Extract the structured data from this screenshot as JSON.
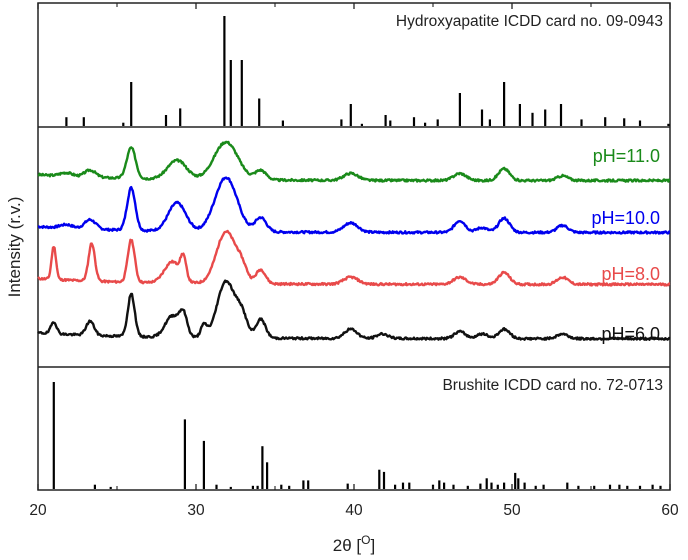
{
  "chart_data": {
    "type": "line",
    "title": "",
    "xlabel": "2θ [°]",
    "xlabel_main": "2θ [",
    "xlabel_deg": "O",
    "xlabel_close": "]",
    "ylabel": "Intensity (r.v.)",
    "xlim": [
      20,
      60
    ],
    "xticks": [
      20,
      30,
      40,
      50,
      60
    ],
    "xtick_labels": [
      "20",
      "30",
      "40",
      "50",
      "60"
    ],
    "panels": [
      {
        "id": "hydroxyapatite",
        "label": "Hydroxyapatite ICDD card no. 09-0943",
        "type": "stick",
        "ylim": [
          0,
          100
        ],
        "color": "#000000",
        "peaks": [
          [
            21.8,
            8
          ],
          [
            22.9,
            8
          ],
          [
            25.4,
            3
          ],
          [
            25.9,
            40
          ],
          [
            28.1,
            10
          ],
          [
            29.0,
            16
          ],
          [
            31.8,
            100
          ],
          [
            32.2,
            60
          ],
          [
            32.9,
            60
          ],
          [
            34.0,
            25
          ],
          [
            35.5,
            5
          ],
          [
            39.2,
            6
          ],
          [
            39.8,
            20
          ],
          [
            40.5,
            2
          ],
          [
            42.0,
            10
          ],
          [
            42.3,
            5
          ],
          [
            43.8,
            8
          ],
          [
            44.5,
            3
          ],
          [
            45.3,
            6
          ],
          [
            46.7,
            30
          ],
          [
            48.1,
            15
          ],
          [
            48.6,
            6
          ],
          [
            49.5,
            40
          ],
          [
            50.5,
            20
          ],
          [
            51.3,
            12
          ],
          [
            52.1,
            15
          ],
          [
            53.1,
            20
          ],
          [
            54.4,
            6
          ],
          [
            55.9,
            8
          ],
          [
            57.1,
            7
          ],
          [
            58.1,
            5
          ],
          [
            59.9,
            2
          ]
        ]
      },
      {
        "id": "patterns",
        "type": "line",
        "ylim": [
          0,
          100
        ],
        "series": [
          {
            "name": "pH=11.0",
            "color": "#1a8a1a",
            "baseline": 79,
            "noise_seed": 3,
            "peaks": [
              [
                21.8,
                0.4,
                1.5
              ],
              [
                23.3,
                0.35,
                3
              ],
              [
                25.9,
                0.28,
                13
              ],
              [
                28.8,
                0.6,
                8
              ],
              [
                31.9,
                0.75,
                16
              ],
              [
                34.1,
                0.35,
                4
              ],
              [
                39.8,
                0.45,
                3
              ],
              [
                46.7,
                0.4,
                3
              ],
              [
                49.5,
                0.35,
                5
              ],
              [
                53.2,
                0.35,
                2
              ]
            ]
          },
          {
            "name": "pH=10.0",
            "color": "#0000ee",
            "baseline": 57,
            "noise_seed": 7,
            "peaks": [
              [
                21.8,
                0.4,
                1.5
              ],
              [
                23.3,
                0.35,
                4
              ],
              [
                25.9,
                0.26,
                18
              ],
              [
                28.8,
                0.55,
                12
              ],
              [
                31.9,
                0.7,
                23
              ],
              [
                34.1,
                0.35,
                6
              ],
              [
                39.8,
                0.45,
                4
              ],
              [
                46.7,
                0.35,
                5
              ],
              [
                48.1,
                0.35,
                2
              ],
              [
                49.5,
                0.35,
                6
              ],
              [
                53.2,
                0.35,
                3
              ]
            ]
          },
          {
            "name": "pH=8.0",
            "color": "#e84a4a",
            "baseline": 35,
            "noise_seed": 11,
            "peaks": [
              [
                21.0,
                0.14,
                14
              ],
              [
                23.4,
                0.2,
                16
              ],
              [
                25.9,
                0.22,
                18
              ],
              [
                28.5,
                0.5,
                9
              ],
              [
                29.2,
                0.18,
                9
              ],
              [
                31.9,
                0.6,
                22
              ],
              [
                32.9,
                0.35,
                6
              ],
              [
                34.1,
                0.3,
                6
              ],
              [
                39.8,
                0.45,
                3
              ],
              [
                46.7,
                0.4,
                3
              ],
              [
                49.5,
                0.35,
                5
              ],
              [
                53.2,
                0.35,
                3
              ]
            ]
          },
          {
            "name": "pH=6.0",
            "color": "#111111",
            "baseline": 12,
            "noise_seed": 19,
            "peaks": [
              [
                21.0,
                0.18,
                5
              ],
              [
                23.3,
                0.25,
                6
              ],
              [
                25.9,
                0.22,
                18
              ],
              [
                28.5,
                0.45,
                9
              ],
              [
                29.2,
                0.25,
                9
              ],
              [
                30.5,
                0.2,
                5
              ],
              [
                31.9,
                0.55,
                24
              ],
              [
                32.9,
                0.35,
                9
              ],
              [
                34.1,
                0.3,
                8
              ],
              [
                39.8,
                0.4,
                4
              ],
              [
                41.8,
                0.35,
                2
              ],
              [
                46.7,
                0.35,
                3
              ],
              [
                48.1,
                0.35,
                2
              ],
              [
                49.5,
                0.35,
                4
              ],
              [
                53.2,
                0.35,
                2
              ]
            ]
          }
        ]
      },
      {
        "id": "brushite",
        "label": "Brushite ICDD card no. 72-0713",
        "type": "stick",
        "ylim": [
          0,
          100
        ],
        "color": "#000000",
        "peaks": [
          [
            21.0,
            100
          ],
          [
            23.6,
            4
          ],
          [
            24.6,
            2
          ],
          [
            29.3,
            65
          ],
          [
            30.5,
            45
          ],
          [
            31.3,
            4
          ],
          [
            32.2,
            2
          ],
          [
            33.6,
            3
          ],
          [
            33.9,
            3
          ],
          [
            34.2,
            40
          ],
          [
            34.5,
            25
          ],
          [
            35.4,
            4
          ],
          [
            35.9,
            3
          ],
          [
            36.8,
            8
          ],
          [
            37.1,
            8
          ],
          [
            39.6,
            5
          ],
          [
            41.6,
            18
          ],
          [
            41.9,
            16
          ],
          [
            42.6,
            4
          ],
          [
            43.1,
            6
          ],
          [
            43.5,
            6
          ],
          [
            45.0,
            4
          ],
          [
            45.4,
            8
          ],
          [
            45.7,
            6
          ],
          [
            46.3,
            4
          ],
          [
            47.2,
            3
          ],
          [
            48.0,
            5
          ],
          [
            48.4,
            10
          ],
          [
            48.7,
            6
          ],
          [
            49.1,
            4
          ],
          [
            49.5,
            6
          ],
          [
            50.2,
            15
          ],
          [
            50.4,
            10
          ],
          [
            50.8,
            6
          ],
          [
            51.5,
            3
          ],
          [
            52.0,
            4
          ],
          [
            53.5,
            6
          ],
          [
            54.2,
            3
          ],
          [
            55.2,
            3
          ],
          [
            56.2,
            4
          ],
          [
            56.8,
            4
          ],
          [
            57.3,
            3
          ],
          [
            58.1,
            3
          ],
          [
            58.9,
            4
          ],
          [
            59.4,
            3
          ]
        ]
      }
    ]
  }
}
